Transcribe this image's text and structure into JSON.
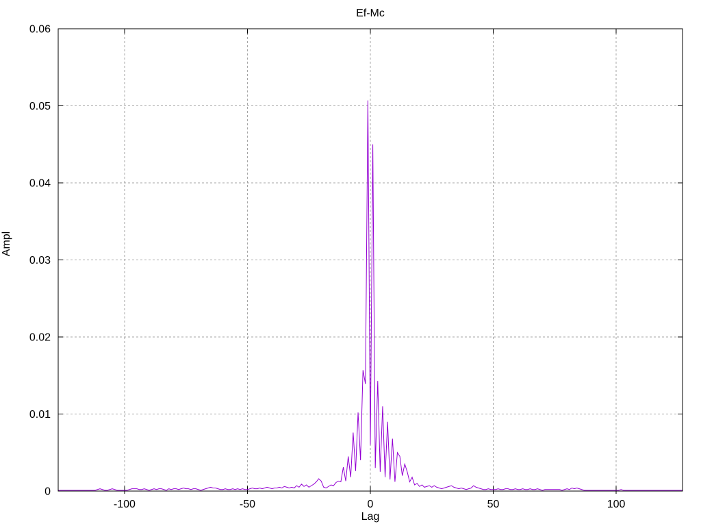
{
  "page": {
    "background": "#ffffff"
  },
  "chart_data": {
    "type": "line",
    "title": "Ef-Mc",
    "xlabel": "Lag",
    "ylabel": "Ampl",
    "xlim": [
      -127,
      127
    ],
    "ylim": [
      0,
      0.06
    ],
    "x_ticks": [
      -100,
      -50,
      0,
      50,
      100
    ],
    "x_tick_labels": [
      "-100",
      "-50",
      "0",
      "50",
      "100"
    ],
    "y_ticks": [
      0,
      0.01,
      0.02,
      0.03,
      0.04,
      0.05,
      0.06
    ],
    "y_tick_labels": [
      "0",
      "0.01",
      "0.02",
      "0.03",
      "0.04",
      "0.05",
      "0.06"
    ],
    "grid": true,
    "legend_position": "none",
    "line_color": "#9400d3",
    "grid_color": "#a6a6a6",
    "axis_color": "#000000",
    "background_color": "#ffffff",
    "series": [
      {
        "name": "Ef-Mc",
        "lag_start": -127,
        "values": [
          0.0001,
          0.0001,
          0.0001,
          0.0001,
          0.0001,
          0.0001,
          0.0001,
          0.0001,
          0.0001,
          0.0001,
          0.0001,
          0.0001,
          0.0001,
          0.0001,
          0.0001,
          0.0001,
          0.0002,
          0.0003,
          0.0002,
          0.0001,
          0.0001,
          0.0002,
          0.0003,
          0.0002,
          0.0001,
          0.0001,
          0.0001,
          0.0001,
          0.0001,
          0.0002,
          0.0003,
          0.0003,
          0.0003,
          0.0002,
          0.0002,
          0.0003,
          0.0002,
          0.0001,
          0.0002,
          0.0003,
          0.0002,
          0.0003,
          0.0003,
          0.0002,
          0.0001,
          0.0003,
          0.0002,
          0.0003,
          0.0003,
          0.0002,
          0.0003,
          0.0004,
          0.0003,
          0.0003,
          0.0002,
          0.0003,
          0.0003,
          0.0002,
          0.0001,
          0.0002,
          0.0003,
          0.0004,
          0.0005,
          0.0004,
          0.0004,
          0.0003,
          0.0002,
          0.0002,
          0.0003,
          0.0002,
          0.0002,
          0.0003,
          0.0002,
          0.0003,
          0.0002,
          0.0003,
          0.0002,
          0.0002,
          0.0003,
          0.0004,
          0.0003,
          0.0003,
          0.0004,
          0.0003,
          0.0004,
          0.0005,
          0.0004,
          0.0003,
          0.0004,
          0.0004,
          0.0005,
          0.0004,
          0.0006,
          0.0005,
          0.0004,
          0.0005,
          0.0004,
          0.0007,
          0.0005,
          0.0009,
          0.0006,
          0.0008,
          0.0005,
          0.0007,
          0.0009,
          0.0012,
          0.0016,
          0.0013,
          0.0005,
          0.0004,
          0.0006,
          0.0008,
          0.0007,
          0.0011,
          0.0013,
          0.0012,
          0.0031,
          0.0013,
          0.0045,
          0.0018,
          0.0076,
          0.0026,
          0.0102,
          0.004,
          0.0157,
          0.0139,
          0.0507,
          0.006,
          0.045,
          0.003,
          0.0143,
          0.0025,
          0.011,
          0.0018,
          0.009,
          0.0015,
          0.0068,
          0.0012,
          0.005,
          0.0045,
          0.002,
          0.0035,
          0.0025,
          0.0012,
          0.0018,
          0.0008,
          0.001,
          0.0006,
          0.0008,
          0.0005,
          0.0006,
          0.0007,
          0.0005,
          0.0007,
          0.0005,
          0.0004,
          0.0003,
          0.0004,
          0.0005,
          0.0006,
          0.0007,
          0.0005,
          0.0004,
          0.0003,
          0.0004,
          0.0003,
          0.0002,
          0.0003,
          0.0004,
          0.0007,
          0.0005,
          0.0004,
          0.0003,
          0.0002,
          0.0002,
          0.0003,
          0.0002,
          0.0002,
          0.0002,
          0.0003,
          0.0002,
          0.0002,
          0.0003,
          0.0003,
          0.0002,
          0.0002,
          0.0003,
          0.0002,
          0.0002,
          0.0003,
          0.0002,
          0.0002,
          0.0003,
          0.0002,
          0.0002,
          0.0003,
          0.0002,
          0.0001,
          0.0002,
          0.0002,
          0.0002,
          0.0002,
          0.0002,
          0.0002,
          0.0002,
          0.0001,
          0.0002,
          0.0003,
          0.0002,
          0.0004,
          0.0003,
          0.0004,
          0.0003,
          0.0002,
          0.0001,
          0.0001,
          0.0001,
          0.0001,
          0.0001,
          0.0001,
          0.0001,
          0.0001,
          0.0001,
          0.0001,
          0.0001,
          0.0001,
          0.0001,
          0.0001,
          0.0001,
          0.0002,
          0.0001,
          0.0001,
          0.0001,
          0.0001,
          0.0001,
          0.0001,
          0.0001,
          0.0001,
          0.0001,
          0.0001,
          0.0001,
          0.0001,
          0.0001,
          0.0001,
          0.0001,
          0.0001,
          0.0001,
          0.0001,
          0.0001,
          0.0001,
          0.0001,
          0.0001,
          0.0001,
          0.0001,
          0.0001
        ]
      }
    ]
  }
}
